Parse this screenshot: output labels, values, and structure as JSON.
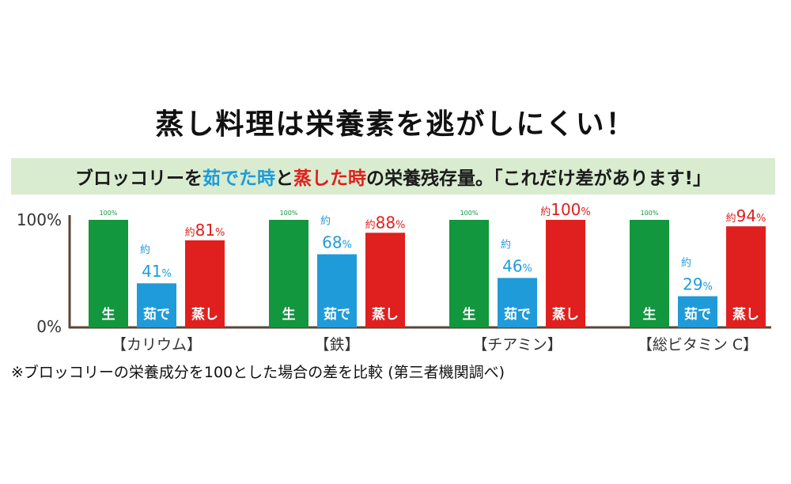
{
  "title": "蒸し料理は栄養素を逃がしにくい！",
  "banner": {
    "prefix": "ブロッコリーを",
    "boiled": "茹でた時",
    "middle": "と",
    "steamed": "蒸した時",
    "suffix": "の栄養残存量。「これだけ差があります!」"
  },
  "footnote": "※ブロッコリーの栄養成分を100とした場合の差を比較 (第三者機関調べ)",
  "chart_data": {
    "type": "bar",
    "ylim": [
      0,
      100
    ],
    "yticks": [
      "0%",
      "100%"
    ],
    "categories": [
      "【カリウム】",
      "【鉄】",
      "【チアミン】",
      "【総ビタミン C】"
    ],
    "approx_prefix": "約",
    "percent_suffix": "%",
    "series": [
      {
        "name": "生",
        "color": "#12963e",
        "values": [
          100,
          100,
          100,
          100
        ],
        "labels": [
          "100%",
          "100%",
          "100%",
          "100%"
        ]
      },
      {
        "name": "茹で",
        "color": "#1f9bd9",
        "values": [
          41,
          68,
          46,
          29
        ],
        "labels": [
          "41",
          "68",
          "46",
          "29"
        ]
      },
      {
        "name": "蒸し",
        "color": "#e0201e",
        "values": [
          81,
          88,
          100,
          94
        ],
        "labels": [
          "81",
          "88",
          "100",
          "94"
        ]
      }
    ]
  }
}
